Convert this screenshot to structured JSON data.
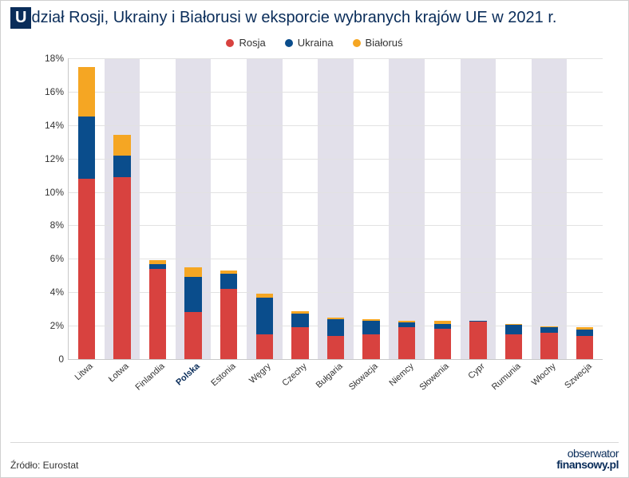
{
  "title_first_letter": "U",
  "title_rest": "dział Rosji, Ukrainy i Białorusi w eksporcie wybranych krajów UE w 2021 r.",
  "legend": [
    {
      "label": "Rosja",
      "color": "#d8423f"
    },
    {
      "label": "Ukraina",
      "color": "#0a4d8c"
    },
    {
      "label": "Białoruś",
      "color": "#f5a623"
    }
  ],
  "chart": {
    "type": "bar-stacked",
    "y_max": 18,
    "y_step": 2,
    "y_suffix": "%",
    "background_color": "#ffffff",
    "stripe_color": "#e2e0ea",
    "grid_color": "#e2e2e2",
    "axis_label_fontsize": 12,
    "bar_width_ratio": 0.48,
    "highlight_category": "Polska",
    "categories": [
      "Litwa",
      "Łotwa",
      "Finlandia",
      "Polska",
      "Estonia",
      "Węgry",
      "Czechy",
      "Bułgaria",
      "Słowacja",
      "Niemcy",
      "Słowenia",
      "Cypr",
      "Rumunia",
      "Włochy",
      "Szwecja"
    ],
    "series": [
      {
        "name": "Rosja",
        "color": "#d8423f",
        "values": [
          10.8,
          10.9,
          5.4,
          2.8,
          4.2,
          1.5,
          1.9,
          1.4,
          1.5,
          1.9,
          1.8,
          2.25,
          1.5,
          1.6,
          1.4
        ]
      },
      {
        "name": "Ukraina",
        "color": "#0a4d8c",
        "values": [
          3.7,
          1.3,
          0.3,
          2.1,
          0.9,
          2.2,
          0.8,
          1.0,
          0.8,
          0.3,
          0.3,
          0.05,
          0.55,
          0.3,
          0.35
        ]
      },
      {
        "name": "Białoruś",
        "color": "#f5a623",
        "values": [
          3.0,
          1.2,
          0.2,
          0.6,
          0.2,
          0.2,
          0.15,
          0.1,
          0.1,
          0.1,
          0.2,
          0.0,
          0.05,
          0.05,
          0.15
        ]
      }
    ]
  },
  "source": "Źródło: Eurostat",
  "brand_top": "obserwator",
  "brand_bot": "finansowy.pl"
}
